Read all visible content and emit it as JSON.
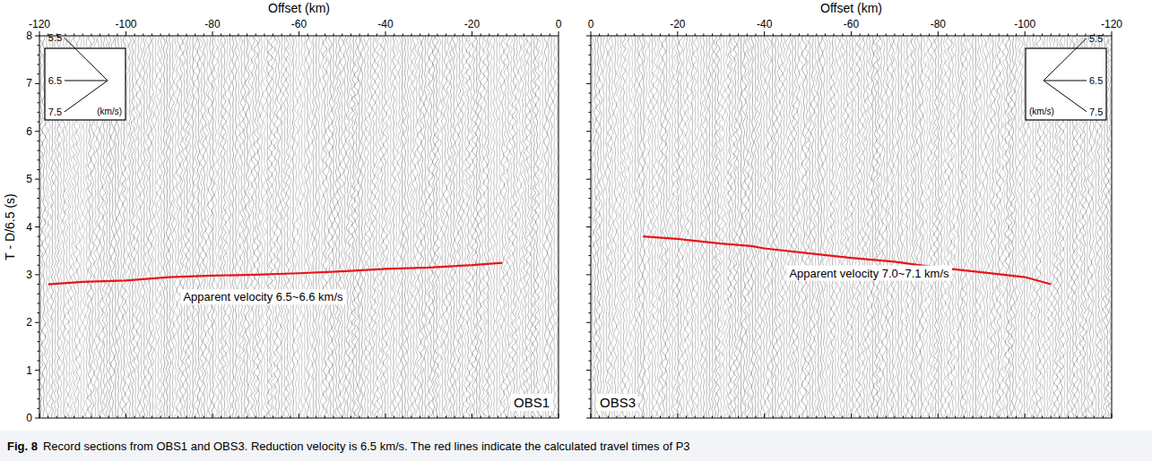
{
  "caption": {
    "label": "Fig. 8",
    "text": "Record sections from OBS1 and OBS3. Reduction velocity is 6.5 km/s. The red lines indicate the calculated travel times of P3"
  },
  "chart_data": [
    {
      "type": "line",
      "x_label": "Offset (km)",
      "y_label": "T - D/6.5 (s)",
      "xlim": [
        -120,
        0
      ],
      "xticks": [
        -120,
        -100,
        -80,
        -60,
        -40,
        -20,
        0
      ],
      "ylim": [
        0,
        8
      ],
      "yticks": [
        0,
        1,
        2,
        3,
        4,
        5,
        6,
        7,
        8
      ],
      "station": "OBS1",
      "annotation": "Apparent velocity 6.5~6.6 km/s",
      "velocity_fan": {
        "velocities": [
          5.5,
          6.5,
          7.5
        ],
        "unit": "(km/s)"
      },
      "x": [
        -118,
        -110,
        -100,
        -90,
        -80,
        -70,
        -60,
        -50,
        -40,
        -30,
        -20,
        -13
      ],
      "series": [
        {
          "color": "#e8141b",
          "values": [
            2.8,
            2.85,
            2.88,
            2.95,
            2.98,
            3.0,
            3.03,
            3.07,
            3.12,
            3.15,
            3.2,
            3.25
          ]
        }
      ]
    },
    {
      "type": "line",
      "x_label": "Offset (km)",
      "tick_labels": "x",
      "xlim": [
        0,
        -120
      ],
      "xticks": [
        0,
        -20,
        -40,
        -60,
        -80,
        -100,
        -120
      ],
      "ylim": [
        0,
        8
      ],
      "yticks": [
        0,
        1,
        2,
        3,
        4,
        5,
        6,
        7,
        8
      ],
      "station": "OBS3",
      "annotation": "Apparent velocity 7.0~7.1 km/s",
      "velocity_fan": {
        "velocities": [
          5.5,
          6.5,
          7.5
        ],
        "unit": "(km/s)"
      },
      "x": [
        -12,
        -20,
        -30,
        -37,
        -40,
        -50,
        -60,
        -70,
        -80,
        -90,
        -100,
        -106
      ],
      "series": [
        {
          "color": "#e8141b",
          "values": [
            3.8,
            3.75,
            3.65,
            3.6,
            3.55,
            3.45,
            3.35,
            3.27,
            3.15,
            3.05,
            2.95,
            2.8
          ]
        }
      ]
    }
  ]
}
